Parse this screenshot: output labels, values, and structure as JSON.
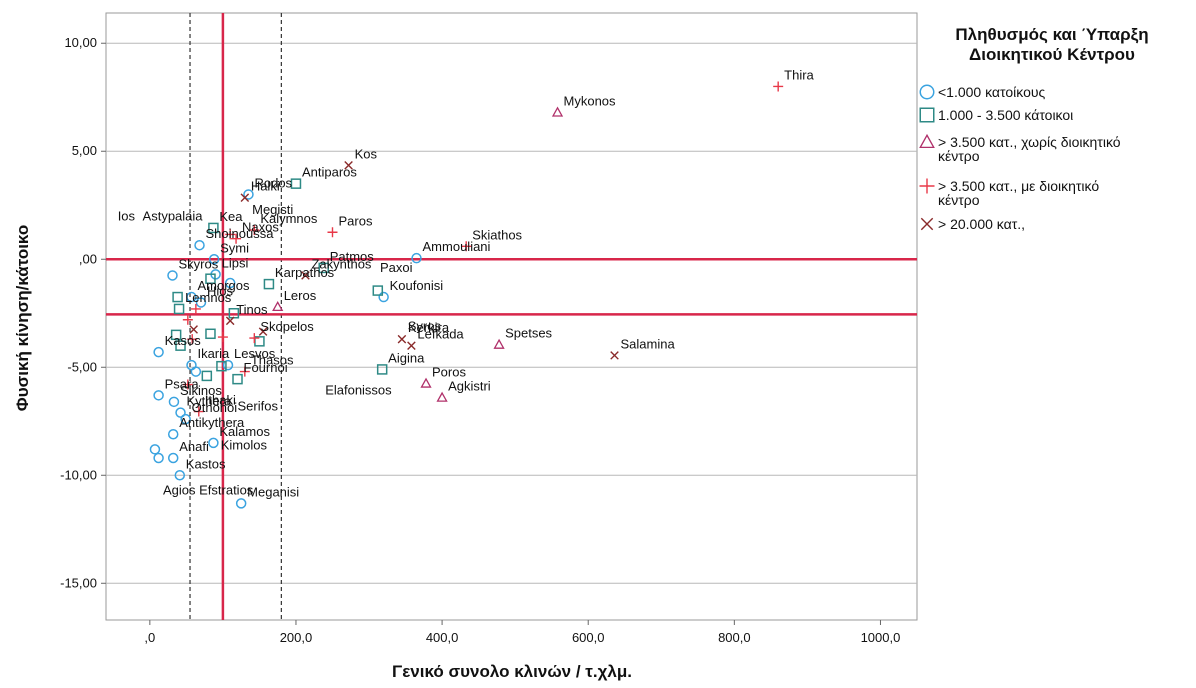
{
  "chart_data": {
    "type": "scatter",
    "xlabel": "Γενικό συνολο κλινών / τ.χλμ.",
    "ylabel": "Φυσική κίνηση/κάτοικο",
    "xlim": [
      -60,
      1050
    ],
    "ylim": [
      -16.7,
      11.4
    ],
    "x_ticks": [
      0,
      200,
      400,
      600,
      800,
      1000
    ],
    "x_tick_labels": [
      ",0",
      "200,0",
      "400,0",
      "600,0",
      "800,0",
      "1000,0"
    ],
    "y_ticks": [
      10,
      5,
      0,
      -5,
      -10,
      -15
    ],
    "y_tick_labels": [
      "10,00",
      "5,00",
      ",00",
      "-5,00",
      "-10,00",
      "-15,00"
    ],
    "grid": "horizontal",
    "legend_position": "right",
    "legend": {
      "title": [
        "Πληθυσμός και Ύπαρξη",
        "Διοικητικού Κέντρου"
      ],
      "entries": [
        {
          "series": "lt1000",
          "lines": [
            "<1.000 κατοίκους"
          ]
        },
        {
          "series": "1000to3500",
          "lines": [
            "1.000 - 3.500 κάτοικοι"
          ]
        },
        {
          "series": "gt3500_nocenter",
          "lines": [
            "> 3.500 κατ., χωρίς διοικητικό",
            "κέντρο"
          ]
        },
        {
          "series": "gt3500_center",
          "lines": [
            "> 3.500 κατ., με διοικητικό",
            "κέντρο"
          ]
        },
        {
          "series": "gt20000",
          "lines": [
            "> 20.000 κατ.,"
          ]
        }
      ]
    },
    "reference_lines": {
      "vertical_solid": [
        100
      ],
      "vertical_dashed": [
        55,
        180
      ],
      "horizontal_solid": [
        0,
        -2.55
      ]
    },
    "series": [
      {
        "key": "lt1000",
        "marker": "circle",
        "color": "#3aa3e0",
        "points": [
          {
            "x": 135,
            "y": 3.0,
            "label": "Rodos"
          },
          {
            "x": 88,
            "y": 0.0,
            "label": "Symi"
          },
          {
            "x": 68,
            "y": 0.65,
            "label": "Shoinoussa"
          },
          {
            "x": 90,
            "y": -0.7,
            "label": "Lipsi"
          },
          {
            "x": 110,
            "y": -1.1,
            "label": ""
          },
          {
            "x": 31,
            "y": -0.75,
            "label": "Skyros"
          },
          {
            "x": 57,
            "y": -1.75,
            "label": "Amorgos"
          },
          {
            "x": 70,
            "y": -2.0,
            "label": "Hios"
          },
          {
            "x": 320,
            "y": -1.75,
            "label": "Koufonisi"
          },
          {
            "x": 365,
            "y": 0.05,
            "label": "Ammouliani"
          },
          {
            "x": 12,
            "y": -4.3,
            "label": "Kasos"
          },
          {
            "x": 57,
            "y": -4.9,
            "label": "Ikaria"
          },
          {
            "x": 63,
            "y": -5.2,
            "label": ""
          },
          {
            "x": 107,
            "y": -4.9,
            "label": "Lesvos"
          },
          {
            "x": 12,
            "y": -6.3,
            "label": "Psara"
          },
          {
            "x": 33,
            "y": -6.6,
            "label": "Sikinos"
          },
          {
            "x": 42,
            "y": -7.1,
            "label": "Kythera"
          },
          {
            "x": 49,
            "y": -7.4,
            "label": "Othonoi"
          },
          {
            "x": 32,
            "y": -8.1,
            "label": "Antikythera"
          },
          {
            "x": 7,
            "y": -8.8,
            "label": ""
          },
          {
            "x": 12,
            "y": -9.2,
            "label": ""
          },
          {
            "x": 32,
            "y": -9.2,
            "label": "Anafi"
          },
          {
            "x": 87,
            "y": -8.5,
            "label": "Kalamos"
          },
          {
            "x": 41,
            "y": -10.0,
            "label": "Kastos"
          },
          {
            "x": 125,
            "y": -11.3,
            "label": "Meganisi"
          }
        ]
      },
      {
        "key": "1000to3500",
        "marker": "square",
        "color": "#2e8a86",
        "points": [
          {
            "x": 200,
            "y": 3.5,
            "label": "Antiparos"
          },
          {
            "x": 87,
            "y": 1.45,
            "label": "Kea"
          },
          {
            "x": 238,
            "y": -0.4,
            "label": "Patmos"
          },
          {
            "x": 163,
            "y": -1.15,
            "label": "Karpathos"
          },
          {
            "x": 83,
            "y": -0.9,
            "label": ""
          },
          {
            "x": 312,
            "y": -1.45,
            "label": ""
          },
          {
            "x": 38,
            "y": -1.75,
            "label": ""
          },
          {
            "x": 40,
            "y": -2.3,
            "label": "Lemnos"
          },
          {
            "x": 115,
            "y": -2.5,
            "label": ""
          },
          {
            "x": 36,
            "y": -3.5,
            "label": ""
          },
          {
            "x": 42,
            "y": -4.0,
            "label": ""
          },
          {
            "x": 83,
            "y": -3.45,
            "label": ""
          },
          {
            "x": 150,
            "y": -3.8,
            "label": ""
          },
          {
            "x": 98,
            "y": -4.95,
            "label": ""
          },
          {
            "x": 318,
            "y": -5.1,
            "label": "Aigina"
          },
          {
            "x": 78,
            "y": -5.4,
            "label": ""
          },
          {
            "x": 120,
            "y": -5.55,
            "label": "Fournoi"
          }
        ]
      },
      {
        "key": "gt3500_nocenter",
        "marker": "triangle",
        "color": "#b0306a",
        "points": [
          {
            "x": 558,
            "y": 6.8,
            "label": "Mykonos"
          },
          {
            "x": 175,
            "y": -2.2,
            "label": "Leros"
          },
          {
            "x": 478,
            "y": -3.95,
            "label": "Spetses"
          },
          {
            "x": 378,
            "y": -5.75,
            "label": "Poros"
          },
          {
            "x": 400,
            "y": -6.4,
            "label": "Agkistri"
          }
        ]
      },
      {
        "key": "gt3500_center",
        "marker": "plus",
        "color": "#e83848",
        "points": [
          {
            "x": 860,
            "y": 8.0,
            "label": "Thira"
          },
          {
            "x": 250,
            "y": 1.25,
            "label": "Paros"
          },
          {
            "x": 143,
            "y": 1.35,
            "label": "Kalymnos"
          },
          {
            "x": 110,
            "y": 1.15,
            "label": ""
          },
          {
            "x": 118,
            "y": 0.95,
            "label": "Naxos"
          },
          {
            "x": 433,
            "y": 0.6,
            "label": "Skiathos"
          },
          {
            "x": 63,
            "y": -2.3,
            "label": ""
          },
          {
            "x": 52,
            "y": -2.8,
            "label": ""
          },
          {
            "x": 58,
            "y": -3.7,
            "label": ""
          },
          {
            "x": 100,
            "y": -3.6,
            "label": ""
          },
          {
            "x": 143,
            "y": -3.65,
            "label": "Skopelos"
          },
          {
            "x": 130,
            "y": -5.2,
            "label": "Thasos"
          },
          {
            "x": 52,
            "y": -5.8,
            "label": ""
          },
          {
            "x": 67,
            "y": -7.05,
            "label": "Ithaki"
          }
        ]
      },
      {
        "key": "gt20000",
        "marker": "cross",
        "color": "#8a2a2a",
        "points": [
          {
            "x": 272,
            "y": 4.35,
            "label": "Kos"
          },
          {
            "x": 130,
            "y": 2.85,
            "label": "Halki"
          },
          {
            "x": 213,
            "y": -0.75,
            "label": "Zakynthos"
          },
          {
            "x": 110,
            "y": -2.85,
            "label": "Tinos"
          },
          {
            "x": 60,
            "y": -3.25,
            "label": ""
          },
          {
            "x": 155,
            "y": -3.35,
            "label": ""
          },
          {
            "x": 345,
            "y": -3.7,
            "label": "Kerkira"
          },
          {
            "x": 358,
            "y": -4.0,
            "label": "Lefkada"
          },
          {
            "x": 636,
            "y": -4.45,
            "label": "Salamina"
          }
        ]
      }
    ],
    "free_labels": [
      {
        "text": "Megisti",
        "x": 140,
        "y": 2.1
      },
      {
        "text": "Ios",
        "x": -44,
        "y": 1.8
      },
      {
        "text": "Astypalaia",
        "x": -10,
        "y": 1.8
      },
      {
        "text": "Paxoi",
        "x": 315,
        "y": -0.6
      },
      {
        "text": "Syros",
        "x": 353,
        "y": -3.3
      },
      {
        "text": "Elafonissos",
        "x": 240,
        "y": -6.25
      },
      {
        "text": "Serifos",
        "x": 120,
        "y": -7.0
      },
      {
        "text": "Kimolos",
        "x": 97,
        "y": -8.8
      },
      {
        "text": "Agios Efstratios",
        "x": 18,
        "y": -10.9
      }
    ]
  }
}
